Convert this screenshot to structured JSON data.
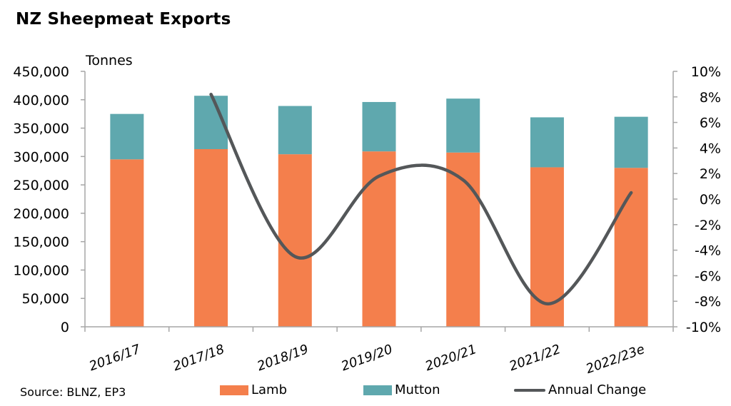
{
  "title": "NZ Sheepmeat Exports",
  "source": "Source: BLNZ, EP3",
  "colors": {
    "lamb": "#F47F4C",
    "mutton": "#5FA8AE",
    "change": "#545759",
    "axis": "#A6A6A6"
  },
  "chart_data": {
    "type": "bar",
    "stacked": true,
    "categories": [
      "2016/17",
      "2017/18",
      "2018/19",
      "2019/20",
      "2020/21",
      "2021/22",
      "2022/23e"
    ],
    "series": [
      {
        "name": "Lamb",
        "type": "bar",
        "axis": "left",
        "values": [
          295000,
          313000,
          304000,
          309000,
          307000,
          281000,
          280000
        ]
      },
      {
        "name": "Mutton",
        "type": "bar",
        "axis": "left",
        "values": [
          80000,
          94000,
          85000,
          87000,
          95000,
          88000,
          90000
        ]
      },
      {
        "name": "Annual Change",
        "type": "line",
        "axis": "right",
        "values": [
          null,
          0.082,
          -0.045,
          0.018,
          0.015,
          -0.082,
          0.005
        ]
      }
    ],
    "ylabel": "Tonnes",
    "ylim": [
      0,
      450000
    ],
    "yticks": [
      "0",
      "50,000",
      "100,000",
      "150,000",
      "200,000",
      "250,000",
      "300,000",
      "350,000",
      "400,000",
      "450,000"
    ],
    "y2lim": [
      -0.1,
      0.1
    ],
    "y2ticks": [
      "-10%",
      "-8%",
      "-6%",
      "-4%",
      "-2%",
      "0%",
      "2%",
      "4%",
      "6%",
      "8%",
      "10%"
    ],
    "grid": false,
    "legend_position": "bottom"
  }
}
